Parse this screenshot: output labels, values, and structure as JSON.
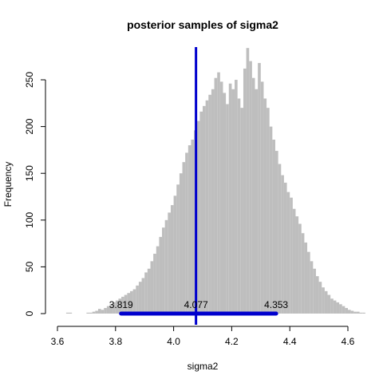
{
  "chart_data": {
    "type": "bar",
    "title": "posterior samples of sigma2",
    "xlabel": "sigma2",
    "ylabel": "Frequency",
    "xlim": [
      3.6,
      4.6
    ],
    "ylim": [
      0,
      285
    ],
    "x_ticks": [
      "3.6",
      "3.8",
      "4.0",
      "4.2",
      "4.4",
      "4.6"
    ],
    "y_ticks": [
      "0",
      "50",
      "100",
      "150",
      "200",
      "250"
    ],
    "bin_start": 3.6,
    "bin_width": 0.01,
    "bin_counts": [
      0,
      0,
      0,
      1,
      1,
      0,
      0,
      0,
      0,
      0,
      1,
      1,
      2,
      3,
      5,
      4,
      6,
      8,
      10,
      12,
      14,
      16,
      18,
      20,
      22,
      24,
      26,
      30,
      34,
      38,
      44,
      48,
      56,
      64,
      72,
      82,
      92,
      100,
      108,
      116,
      126,
      138,
      150,
      162,
      172,
      180,
      186,
      196,
      206,
      216,
      222,
      228,
      234,
      240,
      252,
      258,
      248,
      236,
      224,
      246,
      240,
      250,
      230,
      220,
      262,
      284,
      270,
      252,
      240,
      268,
      248,
      230,
      220,
      200,
      186,
      174,
      160,
      148,
      140,
      130,
      124,
      112,
      104,
      96,
      86,
      76,
      66,
      56,
      48,
      40,
      34,
      28,
      24,
      20,
      16,
      14,
      12,
      10,
      8,
      6,
      4,
      3,
      2,
      2,
      1,
      1
    ],
    "bar_color": "#bebebe",
    "mean": {
      "value": 4.077,
      "label": "4.077",
      "color": "#0000cd"
    },
    "interval": {
      "lower": 3.819,
      "upper": 4.353,
      "lower_label": "3.819",
      "upper_label": "4.353",
      "color": "#0000cd"
    }
  }
}
